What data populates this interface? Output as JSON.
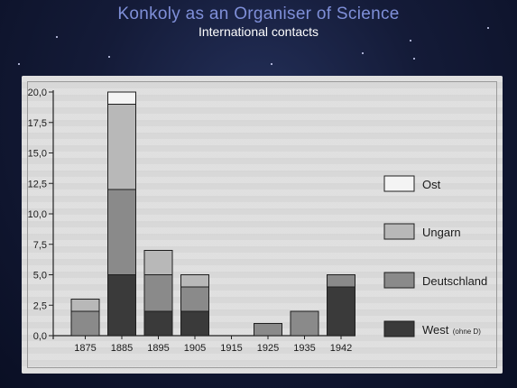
{
  "slide": {
    "title": "Konkoly as an Organiser of Science",
    "subtitle": "International contacts"
  },
  "chart_data": {
    "type": "bar",
    "stacked": true,
    "categories": [
      "1875",
      "1885",
      "1895",
      "1905",
      "1915",
      "1925",
      "1935",
      "1942"
    ],
    "series": [
      {
        "name": "West",
        "note": "(ohne D)",
        "color": "#3a3a3a",
        "values": [
          0,
          5,
          2,
          2,
          0,
          0,
          0,
          4
        ]
      },
      {
        "name": "Deutschland",
        "color": "#8a8a8a",
        "values": [
          2,
          7,
          3,
          2,
          0,
          1,
          2,
          1
        ]
      },
      {
        "name": "Ungarn",
        "color": "#b8b8b8",
        "values": [
          1,
          7,
          2,
          1,
          0,
          0,
          0,
          0
        ]
      },
      {
        "name": "Ost",
        "color": "#f4f4f4",
        "values": [
          0,
          1,
          0,
          0,
          0,
          0,
          0,
          0
        ]
      }
    ],
    "yticks": [
      "0,0",
      "2,5",
      "5,0",
      "7,5",
      "10,0",
      "12,5",
      "15,0",
      "17,5",
      "20,0"
    ],
    "ylim": [
      0,
      20
    ],
    "legend_position": "right",
    "legend_order": [
      "Ost",
      "Ungarn",
      "Deutschland",
      "West"
    ],
    "grid": false
  }
}
